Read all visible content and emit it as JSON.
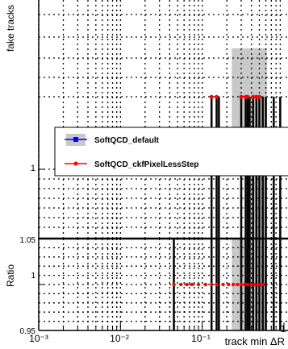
{
  "chart_data": [
    {
      "type": "line",
      "panel": "main",
      "ylabel": "fake tracks",
      "yscale": "log",
      "ytick_labels": [
        "1"
      ],
      "grid": true,
      "legend_placement": "center-left",
      "series": [
        {
          "name": "SoftQCD_default",
          "color": "#0000ff",
          "marker": "square",
          "band_color": "#c8c8c8"
        },
        {
          "name": "SoftQCD_ckfPixelLessStep",
          "color": "#ff0000",
          "marker": "circle",
          "x": [
            0.13,
            0.15,
            0.3,
            0.34,
            0.36,
            0.42,
            0.46,
            0.5
          ],
          "values": [
            2,
            2,
            2,
            2,
            2,
            2,
            2,
            2
          ]
        }
      ]
    },
    {
      "type": "line",
      "panel": "ratio",
      "xlabel": "track min ΔR",
      "ylabel": "Ratio",
      "xscale": "log",
      "xlim": [
        0.001,
        1
      ],
      "ylim": [
        0.95,
        1.05
      ],
      "xtick_labels": [
        "10⁻³",
        "10⁻²",
        "10⁻¹",
        "1"
      ],
      "ytick_labels": [
        "0.95",
        "1",
        "1.05"
      ],
      "grid": true,
      "series": [
        {
          "name": "SoftQCD_ckfPixelLessStep",
          "color": "#ff0000",
          "x": [
            0.045,
            0.055,
            0.065,
            0.075,
            0.09,
            0.11,
            0.13,
            0.15,
            0.18,
            0.21,
            0.24,
            0.27,
            0.3,
            0.33,
            0.36,
            0.4,
            0.44,
            0.48,
            0.52,
            0.56
          ],
          "values": [
            1,
            1,
            1,
            1,
            1,
            1,
            1,
            1,
            1,
            1,
            1,
            1,
            1,
            1,
            1,
            1,
            1,
            1,
            1,
            1
          ]
        }
      ]
    }
  ]
}
